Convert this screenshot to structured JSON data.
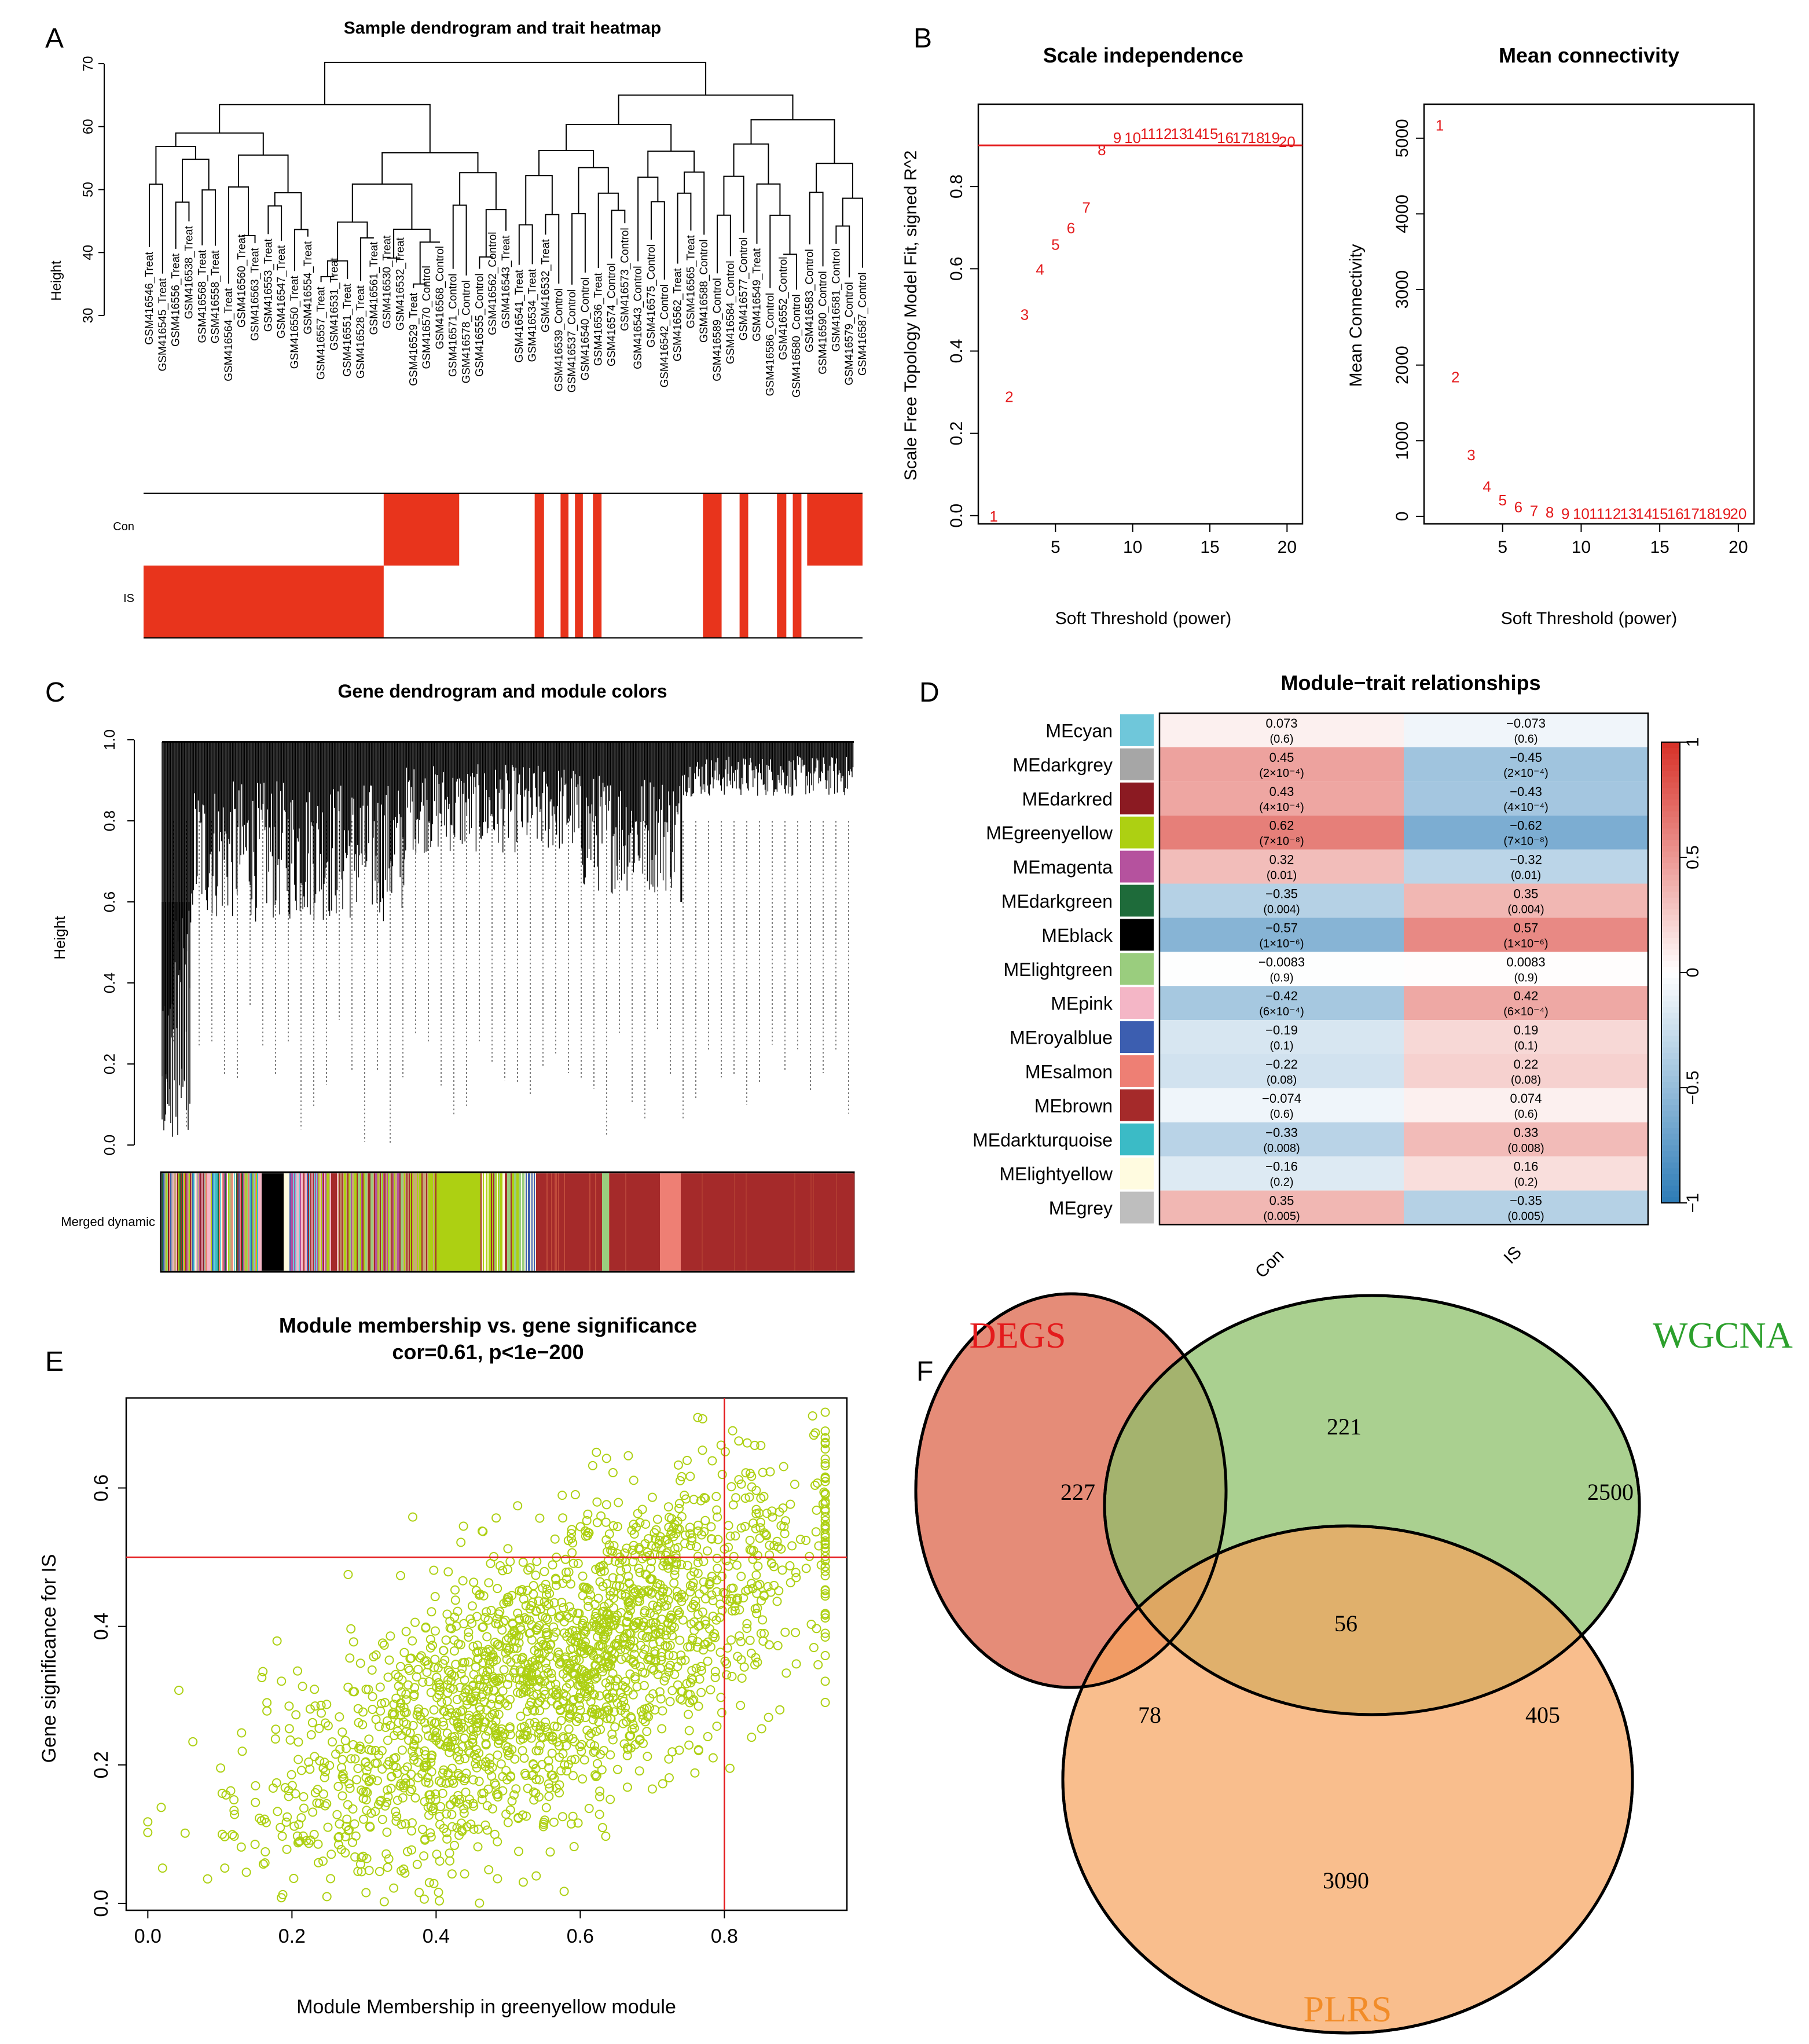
{
  "colors": {
    "red": "#E8341C",
    "axis_red": "#E41A1C",
    "greenyellow": "#ADD012",
    "venn_degs": "#E07860",
    "venn_wgcna": "#8DC06B",
    "venn_plrs": "#F7A35C"
  },
  "panels": {
    "A": "A",
    "B": "B",
    "C": "C",
    "D": "D",
    "E": "E",
    "F": "F"
  },
  "chart_data": [
    {
      "panel": "A",
      "type": "heatmap",
      "title": "Sample dendrogram and trait heatmap",
      "ylabel": "Height",
      "ylim": [
        30,
        70
      ],
      "yticks": [
        30,
        40,
        50,
        60,
        70
      ],
      "rows": [
        "Con",
        "IS"
      ],
      "samples": [
        "GSM416546_Treat",
        "GSM416545_Treat",
        "GSM416556_Treat",
        "GSM416538_Treat",
        "GSM416568_Treat",
        "GSM416558_Treat",
        "GSM416564_Treat",
        "GSM416560_Treat",
        "GSM416563_Treat",
        "GSM416553_Treat",
        "GSM416547_Treat",
        "GSM416550_Treat",
        "GSM416554_Treat",
        "GSM416557_Treat",
        "GSM416531_Treat",
        "GSM416551_Treat",
        "GSM416528_Treat",
        "GSM416561_Treat",
        "GSM416530_Treat",
        "GSM416532_Treat",
        "GSM416529_Treat",
        "GSM416570_Control",
        "GSM416568_Control",
        "GSM416571_Control",
        "GSM416578_Control",
        "GSM416555_Control",
        "GSM416562_Control",
        "GSM416543_Treat",
        "GSM416541_Treat",
        "GSM416534_Treat",
        "GSM416532_Treat",
        "GSM416539_Control",
        "GSM416537_Control",
        "GSM416540_Control",
        "GSM416536_Treat",
        "GSM416574_Control",
        "GSM416573_Control",
        "GSM416543_Control",
        "GSM416575_Control",
        "GSM416542_Control",
        "GSM416562_Treat",
        "GSM416565_Treat",
        "GSM416588_Control",
        "GSM416589_Control",
        "GSM416584_Control",
        "GSM416577_Control",
        "GSM416549_Treat",
        "GSM416586_Control",
        "GSM416552_Control",
        "GSM416580_Control",
        "GSM416583_Control",
        "GSM416590_Control",
        "GSM416581_Control",
        "GSM416579_Control",
        "GSM416587_Control"
      ],
      "con_blocks": [
        [
          0.334,
          0.439
        ],
        [
          0.544,
          0.557
        ],
        [
          0.58,
          0.591
        ],
        [
          0.6,
          0.611
        ],
        [
          0.625,
          0.637
        ],
        [
          0.778,
          0.804
        ],
        [
          0.829,
          0.841
        ],
        [
          0.881,
          0.894
        ],
        [
          0.903,
          0.915
        ],
        [
          0.923,
          1.0
        ]
      ],
      "is_blocks": [
        [
          0.0,
          0.334
        ],
        [
          0.544,
          0.557
        ],
        [
          0.58,
          0.591
        ],
        [
          0.6,
          0.611
        ],
        [
          0.625,
          0.637
        ],
        [
          0.778,
          0.804
        ],
        [
          0.829,
          0.841
        ],
        [
          0.881,
          0.894
        ],
        [
          0.903,
          0.915
        ]
      ]
    },
    {
      "panel": "B1",
      "type": "scatter",
      "title": "Scale independence",
      "xlabel": "Soft Threshold (power)",
      "ylabel": "Scale Free Topology Model Fit, signed R^2",
      "xlim": [
        0,
        21
      ],
      "ylim": [
        -0.02,
        1.0
      ],
      "xticks": [
        5,
        10,
        15,
        20
      ],
      "yticks": [
        0.0,
        0.2,
        0.4,
        0.6,
        0.8
      ],
      "hline": 0.9,
      "x": [
        1,
        2,
        3,
        4,
        5,
        6,
        7,
        8,
        9,
        10,
        11,
        12,
        13,
        14,
        15,
        16,
        17,
        18,
        19,
        20
      ],
      "y": [
        0.0,
        0.29,
        0.49,
        0.6,
        0.66,
        0.7,
        0.75,
        0.89,
        0.92,
        0.92,
        0.93,
        0.93,
        0.93,
        0.93,
        0.93,
        0.92,
        0.92,
        0.92,
        0.92,
        0.91
      ]
    },
    {
      "panel": "B2",
      "type": "scatter",
      "title": "Mean connectivity",
      "xlabel": "Soft Threshold (power)",
      "ylabel": "Mean Connectivity",
      "xlim": [
        0,
        21
      ],
      "ylim": [
        -100,
        5450
      ],
      "xticks": [
        5,
        10,
        15,
        20
      ],
      "yticks": [
        0,
        1000,
        2000,
        3000,
        4000,
        5000
      ],
      "x": [
        1,
        2,
        3,
        4,
        5,
        6,
        7,
        8,
        9,
        10,
        11,
        12,
        13,
        14,
        15,
        16,
        17,
        18,
        19,
        20
      ],
      "y": [
        5180,
        1850,
        820,
        400,
        220,
        130,
        80,
        60,
        40,
        40,
        40,
        40,
        40,
        40,
        40,
        40,
        40,
        40,
        40,
        40
      ]
    },
    {
      "panel": "C",
      "type": "heatmap",
      "title": "Gene dendrogram and module colors",
      "ylabel": "Height",
      "yticks": [
        0.0,
        0.2,
        0.4,
        0.6,
        0.8,
        1.0
      ],
      "row_label": "Merged dynamic"
    },
    {
      "panel": "D",
      "type": "heatmap",
      "title": "Module−trait relationships",
      "columns": [
        "Con",
        "IS"
      ],
      "legend_ticks": [
        "1",
        "0.5",
        "0",
        "−0.5",
        "−1"
      ],
      "rows": [
        {
          "name": "MEcyan",
          "color": "#6FC7DA",
          "cor": [
            0.073,
            -0.073
          ],
          "con": "0.073",
          "is": "−0.073",
          "p_con": "(0.6)",
          "p_is": "(0.6)"
        },
        {
          "name": "MEdarkgrey",
          "color": "#A6A6A6",
          "cor": [
            0.45,
            -0.45
          ],
          "con": "0.45",
          "is": "−0.45",
          "p_con": "(2×10⁻⁴)",
          "p_is": "(2×10⁻⁴)"
        },
        {
          "name": "MEdarkred",
          "color": "#8B1A22",
          "cor": [
            0.43,
            -0.43
          ],
          "con": "0.43",
          "is": "−0.43",
          "p_con": "(4×10⁻⁴)",
          "p_is": "(4×10⁻⁴)"
        },
        {
          "name": "MEgreenyellow",
          "color": "#ADD012",
          "cor": [
            0.62,
            -0.62
          ],
          "con": "0.62",
          "is": "−0.62",
          "p_con": "(7×10⁻⁸)",
          "p_is": "(7×10⁻⁸)"
        },
        {
          "name": "MEmagenta",
          "color": "#B5529E",
          "cor": [
            0.32,
            -0.32
          ],
          "con": "0.32",
          "is": "−0.32",
          "p_con": "(0.01)",
          "p_is": "(0.01)"
        },
        {
          "name": "MEdarkgreen",
          "color": "#1E6B3A",
          "cor": [
            -0.35,
            0.35
          ],
          "con": "−0.35",
          "is": "0.35",
          "p_con": "(0.004)",
          "p_is": "(0.004)"
        },
        {
          "name": "MEblack",
          "color": "#000000",
          "cor": [
            -0.57,
            0.57
          ],
          "con": "−0.57",
          "is": "0.57",
          "p_con": "(1×10⁻⁶)",
          "p_is": "(1×10⁻⁶)"
        },
        {
          "name": "MElightgreen",
          "color": "#9ACD7E",
          "cor": [
            -0.0083,
            0.0083
          ],
          "con": "−0.0083",
          "is": "0.0083",
          "p_con": "(0.9)",
          "p_is": "(0.9)"
        },
        {
          "name": "MEpink",
          "color": "#F4B6C6",
          "cor": [
            -0.42,
            0.42
          ],
          "con": "−0.42",
          "is": "0.42",
          "p_con": "(6×10⁻⁴)",
          "p_is": "(6×10⁻⁴)"
        },
        {
          "name": "MEroyalblue",
          "color": "#3C5EB0",
          "cor": [
            -0.19,
            0.19
          ],
          "con": "−0.19",
          "is": "0.19",
          "p_con": "(0.1)",
          "p_is": "(0.1)"
        },
        {
          "name": "MEsalmon",
          "color": "#EE7F74",
          "cor": [
            -0.22,
            0.22
          ],
          "con": "−0.22",
          "is": "0.22",
          "p_con": "(0.08)",
          "p_is": "(0.08)"
        },
        {
          "name": "MEbrown",
          "color": "#A52A2A",
          "cor": [
            -0.074,
            0.074
          ],
          "con": "−0.074",
          "is": "0.074",
          "p_con": "(0.6)",
          "p_is": "(0.6)"
        },
        {
          "name": "MEdarkturquoise",
          "color": "#3BBBC6",
          "cor": [
            -0.33,
            0.33
          ],
          "con": "−0.33",
          "is": "0.33",
          "p_con": "(0.008)",
          "p_is": "(0.008)"
        },
        {
          "name": "MElightyellow",
          "color": "#FFFBE0",
          "cor": [
            -0.16,
            0.16
          ],
          "con": "−0.16",
          "is": "0.16",
          "p_con": "(0.2)",
          "p_is": "(0.2)"
        },
        {
          "name": "MEgrey",
          "color": "#BEBEBE",
          "cor": [
            0.35,
            -0.35
          ],
          "con": "0.35",
          "is": "−0.35",
          "p_con": "(0.005)",
          "p_is": "(0.005)"
        }
      ]
    },
    {
      "panel": "E",
      "type": "scatter",
      "title": "Module membership vs. gene significance",
      "subtitle": "cor=0.61, p<1e−200",
      "xlabel": "Module Membership in greenyellow module",
      "ylabel": "Gene significance for  IS",
      "xlim": [
        -0.03,
        0.97
      ],
      "ylim": [
        -0.01,
        0.73
      ],
      "xticks": [
        0.0,
        0.2,
        0.4,
        0.6,
        0.8
      ],
      "yticks": [
        0.0,
        0.2,
        0.4,
        0.6
      ],
      "vline": 0.8,
      "hline": 0.5,
      "cor": 0.61,
      "n_points": 2100
    },
    {
      "panel": "F",
      "type": "venn",
      "sets": [
        {
          "name": "DEGS",
          "color": "#E41A1C"
        },
        {
          "name": "WGCNA",
          "color": "#2CA02C"
        },
        {
          "name": "PLRS",
          "color": "#F28C28"
        }
      ],
      "regions": {
        "degs_only": "227",
        "wgcna_only": "2500",
        "plrs_only": "3090",
        "degs_wgcna": "221",
        "degs_plrs": "78",
        "wgcna_plrs": "405",
        "all": "56"
      }
    }
  ]
}
